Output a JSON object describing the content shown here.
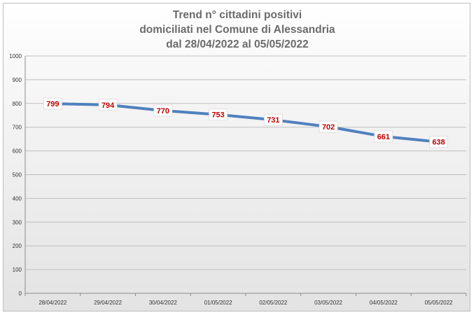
{
  "chart_data": {
    "type": "line",
    "title_lines": [
      "Trend n° cittadini positivi",
      "domiciliati nel Comune di Alessandria",
      "dal 28/04/2022 al 05/05/2022"
    ],
    "categories": [
      "28/04/2022",
      "29/04/2022",
      "30/04/2022",
      "01/05/2022",
      "02/05/2022",
      "03/05/2022",
      "04/05/2022",
      "05/05/2022"
    ],
    "series": [
      {
        "values": [
          799,
          794,
          770,
          753,
          731,
          702,
          661,
          638
        ],
        "color": "#4f81bd"
      }
    ],
    "ylim": [
      0,
      1000
    ],
    "yticks": [
      0,
      100,
      200,
      300,
      400,
      500,
      600,
      700,
      800,
      900,
      1000
    ],
    "grid": true,
    "legend": "none",
    "label_color": "#c00000"
  }
}
